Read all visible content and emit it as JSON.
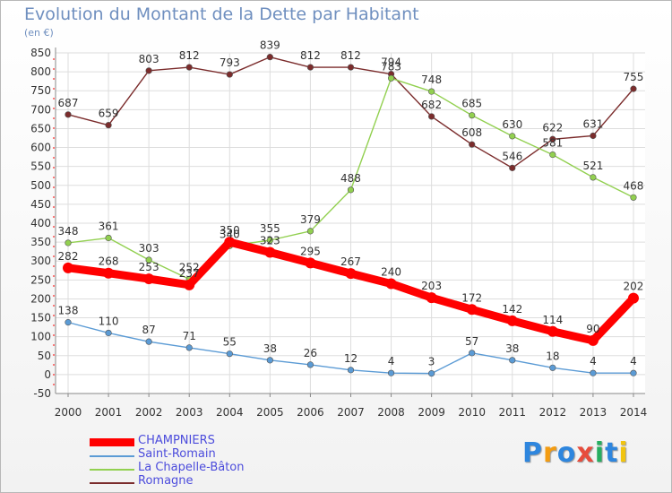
{
  "chart_data": {
    "type": "line",
    "title": "Evolution du Montant de la Dette par Habitant",
    "subtitle": "(en €)",
    "x": [
      "2000",
      "2001",
      "2002",
      "2003",
      "2004",
      "2005",
      "2006",
      "2007",
      "2008",
      "2009",
      "2010",
      "2011",
      "2012",
      "2013",
      "2014"
    ],
    "ylim": [
      -50,
      850
    ],
    "yticks": [
      -50,
      0,
      50,
      100,
      150,
      200,
      250,
      300,
      350,
      400,
      450,
      500,
      550,
      600,
      650,
      700,
      750,
      800,
      850
    ],
    "grid": true,
    "legend_position": "bottom-left",
    "series": [
      {
        "name": "CHAMPNIERS",
        "color": "#ff0000",
        "values": [
          282,
          268,
          253,
          237,
          350,
          323,
          295,
          267,
          240,
          203,
          172,
          142,
          114,
          90,
          202
        ]
      },
      {
        "name": "Saint-Romain",
        "color": "#5b9bd5",
        "values": [
          138,
          110,
          87,
          71,
          55,
          38,
          26,
          12,
          4,
          3,
          57,
          38,
          18,
          4,
          4
        ]
      },
      {
        "name": "La Chapelle-Bâton",
        "color": "#92d050",
        "values": [
          348,
          361,
          303,
          252,
          340,
          355,
          379,
          488,
          783,
          748,
          685,
          630,
          581,
          521,
          468
        ]
      },
      {
        "name": "Romagne",
        "color": "#7b2c2c",
        "values": [
          687,
          659,
          803,
          812,
          793,
          839,
          812,
          812,
          794,
          682,
          608,
          546,
          622,
          631,
          755
        ]
      }
    ]
  },
  "logo": {
    "letters": [
      {
        "ch": "P",
        "color": "#2e86de"
      },
      {
        "ch": "r",
        "color": "#f39c12"
      },
      {
        "ch": "o",
        "color": "#2e86de"
      },
      {
        "ch": "x",
        "color": "#e74c3c"
      },
      {
        "ch": "i",
        "color": "#27ae60"
      },
      {
        "ch": "t",
        "color": "#2e86de"
      },
      {
        "ch": "i",
        "color": "#f1c40f"
      }
    ]
  }
}
